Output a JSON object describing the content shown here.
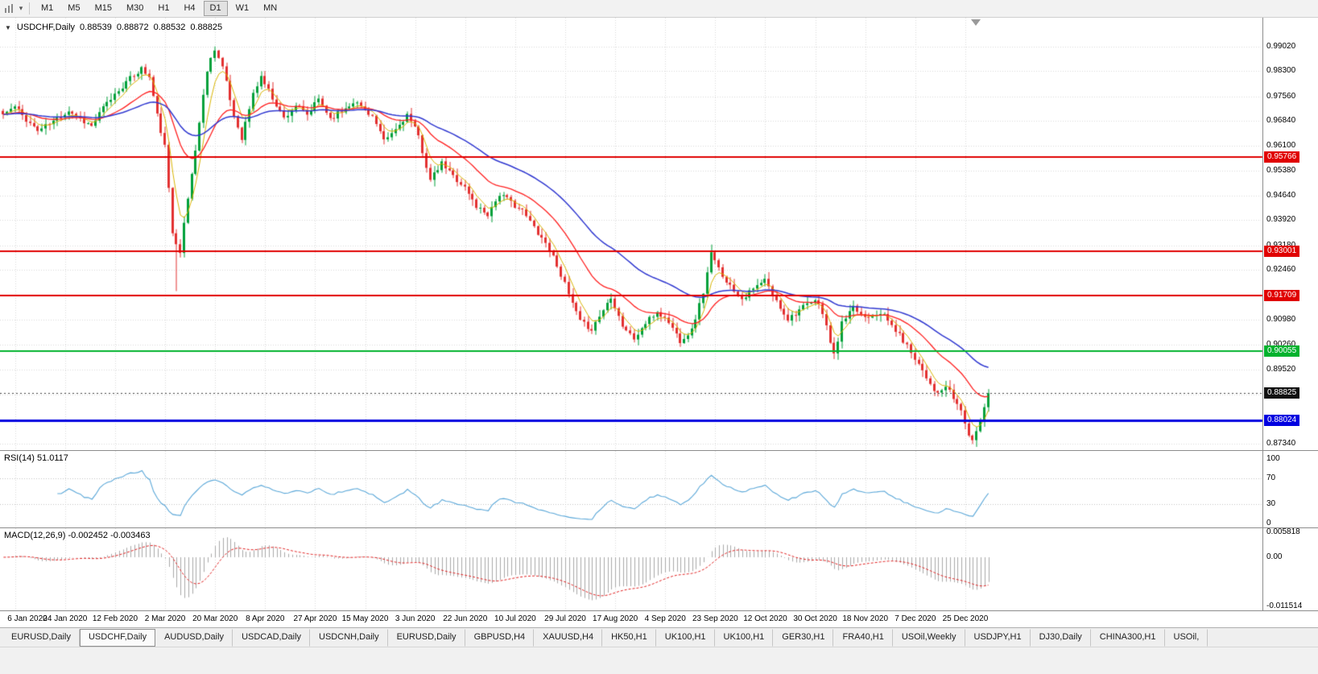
{
  "toolbar": {
    "timeframes": [
      "M1",
      "M5",
      "M15",
      "M30",
      "H1",
      "H4",
      "D1",
      "W1",
      "MN"
    ],
    "active_timeframe": "D1"
  },
  "chart": {
    "title": "USDCHF,Daily",
    "ohlc": {
      "open": "0.88539",
      "high": "0.88872",
      "low": "0.88532",
      "close": "0.88825"
    },
    "price_ticks": [
      "0.99020",
      "0.98300",
      "0.97560",
      "0.96840",
      "0.96100",
      "0.95380",
      "0.94640",
      "0.93920",
      "0.93180",
      "0.92460",
      "0.91720",
      "0.90980",
      "0.90260",
      "0.89520",
      "0.88780",
      "0.88040",
      "0.87340"
    ],
    "hlines": [
      {
        "value": 0.95766,
        "label": "0.95766",
        "color": "#e00000",
        "width": 2
      },
      {
        "value": 0.93001,
        "label": "0.93001",
        "color": "#e00000",
        "width": 2
      },
      {
        "value": 0.91709,
        "label": "0.91709",
        "color": "#e00000",
        "width": 2
      },
      {
        "value": 0.90055,
        "label": "0.90055",
        "color": "#00b22d",
        "width": 2
      },
      {
        "value": 0.88024,
        "label": "0.88024",
        "color": "#0000e0",
        "width": 3
      }
    ],
    "current_price": {
      "value": 0.88825,
      "label": "0.88825",
      "color": "#111111"
    }
  },
  "rsi": {
    "label": "RSI(14) 51.0117",
    "ticks": [
      "100",
      "70",
      "30",
      "0"
    ],
    "levels": [
      70,
      30
    ]
  },
  "macd": {
    "label": "MACD(12,26,9) -0.002452 -0.003463",
    "ticks": [
      "0.005818",
      "0.00",
      "-0.011514"
    ]
  },
  "date_axis": [
    "6 Jan 2020",
    "24 Jan 2020",
    "12 Feb 2020",
    "2 Mar 2020",
    "20 Mar 2020",
    "8 Apr 2020",
    "27 Apr 2020",
    "15 May 2020",
    "3 Jun 2020",
    "22 Jun 2020",
    "10 Jul 2020",
    "29 Jul 2020",
    "17 Aug 2020",
    "4 Sep 2020",
    "23 Sep 2020",
    "12 Oct 2020",
    "30 Oct 2020",
    "18 Nov 2020",
    "7 Dec 2020",
    "25 Dec 2020"
  ],
  "tabs": {
    "items": [
      "EURUSD,Daily",
      "USDCHF,Daily",
      "AUDUSD,Daily",
      "USDCAD,Daily",
      "USDCNH,Daily",
      "EURUSD,Daily",
      "GBPUSD,H4",
      "XAUUSD,H4",
      "HK50,H1",
      "UK100,H1",
      "UK100,H1",
      "GER30,H1",
      "FRA40,H1",
      "USOil,Weekly",
      "USDJPY,H1",
      "DJ30,Daily",
      "CHINA300,H1",
      "USOil,"
    ],
    "active_index": 1
  },
  "chart_data": {
    "type": "candlestick",
    "symbol": "USDCHF",
    "timeframe": "Daily",
    "bars": 257,
    "ylim": [
      0.87151,
      0.99873
    ],
    "last_close": 0.88825,
    "anchors": [
      [
        0,
        0.9703
      ],
      [
        3,
        0.9725
      ],
      [
        6,
        0.9688
      ],
      [
        9,
        0.9655
      ],
      [
        13,
        0.9682
      ],
      [
        17,
        0.9715
      ],
      [
        20,
        0.969
      ],
      [
        23,
        0.9668
      ],
      [
        26,
        0.9722
      ],
      [
        30,
        0.9775
      ],
      [
        33,
        0.9808
      ],
      [
        36,
        0.9838
      ],
      [
        38,
        0.9812
      ],
      [
        40,
        0.97
      ],
      [
        42,
        0.9608
      ],
      [
        44,
        0.9355
      ],
      [
        46,
        0.9302
      ],
      [
        48,
        0.9455
      ],
      [
        50,
        0.96
      ],
      [
        53,
        0.9835
      ],
      [
        55,
        0.9898
      ],
      [
        57,
        0.9842
      ],
      [
        60,
        0.9698
      ],
      [
        62,
        0.9635
      ],
      [
        65,
        0.9762
      ],
      [
        67,
        0.9815
      ],
      [
        70,
        0.9752
      ],
      [
        73,
        0.9692
      ],
      [
        76,
        0.973
      ],
      [
        79,
        0.97
      ],
      [
        82,
        0.9748
      ],
      [
        85,
        0.9692
      ],
      [
        88,
        0.9712
      ],
      [
        91,
        0.9742
      ],
      [
        94,
        0.9718
      ],
      [
        96,
        0.9698
      ],
      [
        99,
        0.9622
      ],
      [
        102,
        0.9658
      ],
      [
        105,
        0.9702
      ],
      [
        108,
        0.9638
      ],
      [
        111,
        0.9508
      ],
      [
        114,
        0.9558
      ],
      [
        117,
        0.9522
      ],
      [
        120,
        0.9488
      ],
      [
        123,
        0.9432
      ],
      [
        126,
        0.941
      ],
      [
        129,
        0.9468
      ],
      [
        132,
        0.9445
      ],
      [
        135,
        0.9418
      ],
      [
        138,
        0.9372
      ],
      [
        141,
        0.9325
      ],
      [
        144,
        0.9262
      ],
      [
        147,
        0.9172
      ],
      [
        150,
        0.9092
      ],
      [
        153,
        0.9072
      ],
      [
        156,
        0.9128
      ],
      [
        158,
        0.9168
      ],
      [
        161,
        0.9082
      ],
      [
        164,
        0.9042
      ],
      [
        167,
        0.9088
      ],
      [
        170,
        0.9122
      ],
      [
        173,
        0.9092
      ],
      [
        176,
        0.9038
      ],
      [
        179,
        0.9068
      ],
      [
        182,
        0.918
      ],
      [
        184,
        0.9292
      ],
      [
        186,
        0.9248
      ],
      [
        189,
        0.9198
      ],
      [
        192,
        0.9162
      ],
      [
        195,
        0.9188
      ],
      [
        198,
        0.9215
      ],
      [
        201,
        0.9152
      ],
      [
        204,
        0.9102
      ],
      [
        207,
        0.9128
      ],
      [
        210,
        0.9148
      ],
      [
        212,
        0.9152
      ],
      [
        214,
        0.9078
      ],
      [
        216,
        0.8992
      ],
      [
        218,
        0.9088
      ],
      [
        221,
        0.9132
      ],
      [
        224,
        0.9108
      ],
      [
        228,
        0.9122
      ],
      [
        231,
        0.9082
      ],
      [
        234,
        0.9038
      ],
      [
        237,
        0.8988
      ],
      [
        239,
        0.8952
      ],
      [
        241,
        0.8912
      ],
      [
        243,
        0.8878
      ],
      [
        245,
        0.8902
      ],
      [
        247,
        0.8868
      ],
      [
        249,
        0.8832
      ],
      [
        251,
        0.8758
      ],
      [
        252,
        0.8742
      ],
      [
        253,
        0.8772
      ],
      [
        254,
        0.8802
      ],
      [
        255,
        0.8842
      ],
      [
        256,
        0.8883
      ]
    ],
    "specials": [
      {
        "i": 45,
        "low": 0.9183
      },
      {
        "i": 55,
        "high": 0.9903
      },
      {
        "i": 184,
        "high": 0.932
      },
      {
        "i": 216,
        "low": 0.8983
      },
      {
        "i": 252,
        "low": 0.8733
      }
    ],
    "indicators": {
      "ma_fast_period": 5,
      "ma_mid_period": 20,
      "ma_slow_period": 45,
      "rsi_period": 14,
      "macd": [
        12,
        26,
        9
      ]
    },
    "colors": {
      "up": "#00a03a",
      "down": "#e33030",
      "ma_fast": "#d8b400",
      "ma_mid": "#ff2020",
      "ma_slow": "#3038d0",
      "rsi": "#5aa7d8",
      "macd_hist": "#a8a8a8",
      "macd_signal": "#e02020",
      "grid": "#d8d8d8"
    }
  }
}
